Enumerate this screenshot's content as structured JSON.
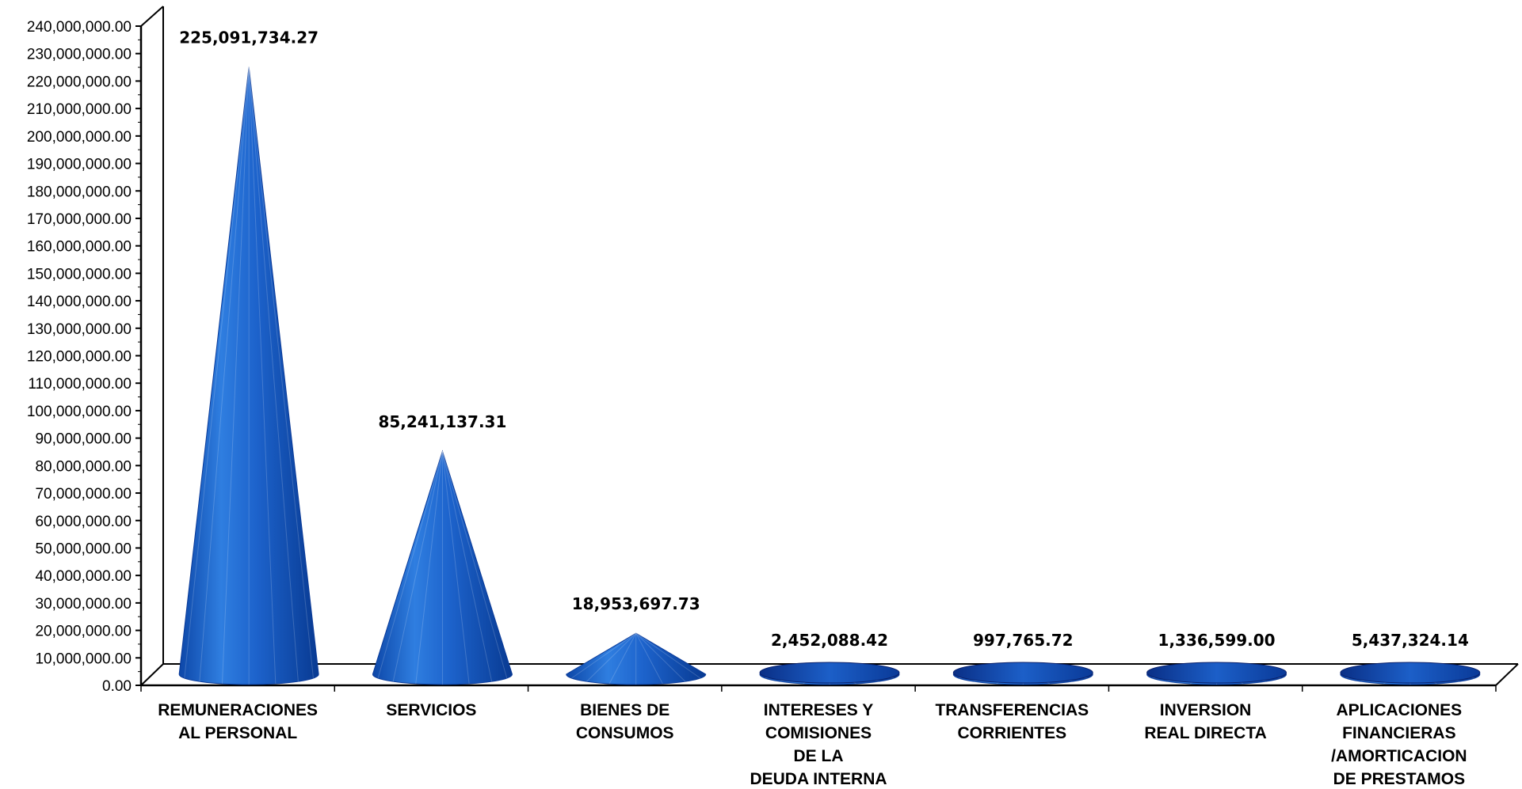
{
  "chart_data": {
    "type": "bar",
    "bar_shape": "cone",
    "style": "3d",
    "categories": [
      [
        "REMUNERACIONES",
        "AL PERSONAL"
      ],
      [
        "SERVICIOS"
      ],
      [
        "BIENES DE",
        "CONSUMOS"
      ],
      [
        "INTERESES Y",
        "COMISIONES",
        "DE LA",
        "DEUDA INTERNA"
      ],
      [
        "TRANSFERENCIAS",
        "CORRIENTES"
      ],
      [
        "INVERSION",
        "REAL DIRECTA"
      ],
      [
        "APLICACIONES",
        "FINANCIERAS",
        "/AMORTICACION",
        "DE PRESTAMOS"
      ]
    ],
    "values": [
      225091734.27,
      85241137.31,
      18953697.73,
      2452088.42,
      997765.72,
      1336599.0,
      5437324.14
    ],
    "data_labels": [
      "225,091,734.27",
      "85,241,137.31",
      "18,953,697.73",
      "2,452,088.42",
      "997,765.72",
      "1,336,599.00",
      "5,437,324.14"
    ],
    "ylim": [
      0,
      240000000
    ],
    "ytick_step": 10000000,
    "ytick_labels": [
      "0.00",
      "10,000,000.00",
      "20,000,000.00",
      "30,000,000.00",
      "40,000,000.00",
      "50,000,000.00",
      "60,000,000.00",
      "70,000,000.00",
      "80,000,000.00",
      "90,000,000.00",
      "100,000,000.00",
      "110,000,000.00",
      "120,000,000.00",
      "130,000,000.00",
      "140,000,000.00",
      "150,000,000.00",
      "160,000,000.00",
      "170,000,000.00",
      "180,000,000.00",
      "190,000,000.00",
      "200,000,000.00",
      "210,000,000.00",
      "220,000,000.00",
      "230,000,000.00",
      "240,000,000.00"
    ],
    "title": "",
    "xlabel": "",
    "ylabel": "",
    "grid": false,
    "legend": "none",
    "colors": {
      "cone_light": "#2a74d8",
      "cone_dark": "#0a3f9e",
      "cone_mid": "#1556c0",
      "axis": "#000000"
    }
  }
}
